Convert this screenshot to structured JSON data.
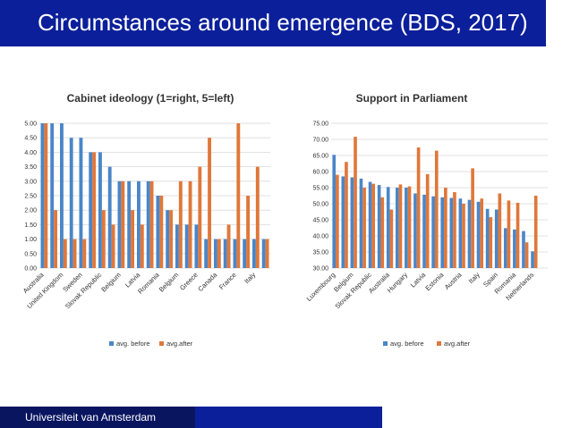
{
  "header": {
    "title": "Circumstances around emergence (BDS, 2017)"
  },
  "footer": {
    "institution": "Universiteit van Amsterdam"
  },
  "colors": {
    "before": "#4a86c8",
    "after": "#e0773a",
    "brand": "#0b1f9a"
  },
  "chart_data": [
    {
      "type": "bar",
      "title": "Cabinet ideology (1=right, 5=left)",
      "ylim": [
        0,
        5
      ],
      "yticks": [
        "0.00",
        "0.50",
        "1.00",
        "1.50",
        "2.00",
        "2.50",
        "3.00",
        "3.50",
        "4.00",
        "4.50",
        "5.00"
      ],
      "categories": [
        "Australia",
        "",
        "United Kingdom",
        "",
        "Sweden",
        "",
        "Slovak Republic",
        "",
        "Belgium",
        "",
        "Latvia",
        "",
        "Romania",
        "",
        "Belgium",
        "",
        "Greece",
        "",
        "Canada",
        "",
        "France",
        "",
        "Italy",
        ""
      ],
      "grid": true,
      "legend": "bottom",
      "series": [
        {
          "name": "avg. before",
          "values": [
            5.0,
            5.0,
            5.0,
            4.5,
            4.5,
            4.0,
            4.0,
            3.5,
            3.0,
            3.0,
            3.0,
            3.0,
            2.5,
            2.0,
            1.5,
            1.5,
            1.5,
            1.0,
            1.0,
            1.0,
            1.0,
            1.0,
            1.0,
            1.0
          ]
        },
        {
          "name": "avg.after",
          "values": [
            5.0,
            2.0,
            1.0,
            1.0,
            1.0,
            4.0,
            2.0,
            1.5,
            3.0,
            2.0,
            1.5,
            3.0,
            2.5,
            2.0,
            3.0,
            3.0,
            3.5,
            4.5,
            1.0,
            1.5,
            5.0,
            2.5,
            3.5,
            1.0
          ]
        }
      ]
    },
    {
      "type": "bar",
      "title": "Support in Parliament",
      "ylim": [
        30,
        75
      ],
      "yticks": [
        "30.00",
        "35.00",
        "40.00",
        "45.00",
        "50.00",
        "55.00",
        "60.00",
        "65.00",
        "70.00",
        "75.00"
      ],
      "categories": [
        "Luxembourg",
        "",
        "Belgium",
        "",
        "Slovak Republic",
        "",
        "Australia",
        "",
        "Hungary",
        "",
        "Latvia",
        "",
        "Estonia",
        "",
        "Austria",
        "",
        "Italy",
        "",
        "Spain",
        "",
        "Romania",
        "",
        "Netherlands",
        ""
      ],
      "grid": true,
      "legend": "bottom",
      "series": [
        {
          "name": "avg. before",
          "values": [
            65.2,
            58.5,
            58.2,
            57.8,
            56.8,
            55.8,
            55.2,
            55.0,
            55.0,
            53.2,
            52.8,
            52.3,
            52.0,
            51.8,
            51.6,
            51.2,
            50.6,
            48.4,
            48.2,
            42.4,
            42.0,
            41.5,
            35.2,
            30.0
          ]
        },
        {
          "name": "avg.after",
          "values": [
            59.0,
            63.0,
            70.8,
            55.0,
            56.2,
            52.0,
            48.2,
            56.0,
            55.4,
            67.5,
            59.2,
            66.5,
            55.0,
            53.6,
            50.0,
            61.0,
            51.6,
            45.8,
            53.2,
            51.0,
            50.3,
            38.0,
            52.5,
            30.0
          ]
        }
      ]
    }
  ]
}
